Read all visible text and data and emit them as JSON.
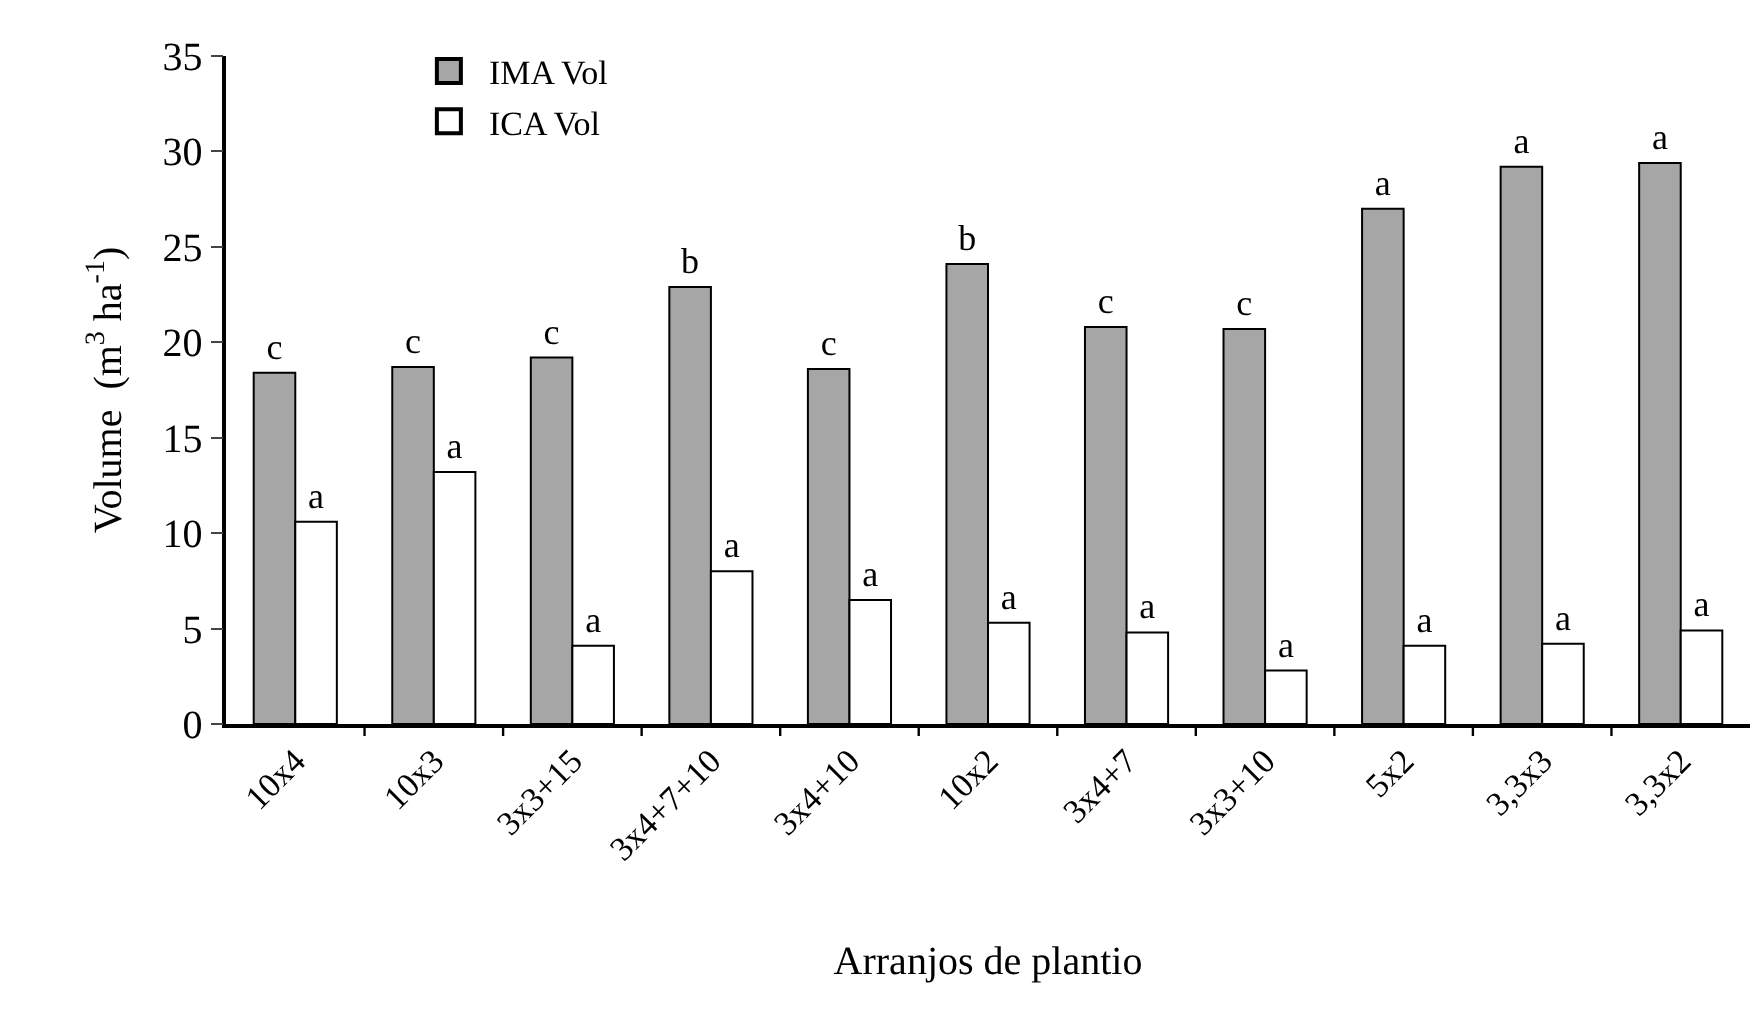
{
  "chart_data": {
    "type": "bar",
    "xlabel": "Arranjos de plantio",
    "ylabel": "Volume  (m$^{3}$ ha$^{-1}$)",
    "categories": [
      "10x4",
      "10x3",
      "3x3+15",
      "3x4+7+10",
      "3x4+10",
      "10x2",
      "3x4+7",
      "3x3+10",
      "5x2",
      "3,3x3",
      "3,3x2"
    ],
    "series": [
      {
        "name": "IMA Vol",
        "color": "#a6a6a6",
        "values": [
          18.4,
          18.7,
          19.2,
          22.9,
          18.6,
          24.1,
          20.8,
          20.7,
          27.0,
          29.2,
          29.4
        ],
        "value_labels": [
          "c",
          "c",
          "c",
          "b",
          "c",
          "b",
          "c",
          "c",
          "a",
          "a",
          "a"
        ]
      },
      {
        "name": "ICA Vol",
        "color": "#ffffff",
        "values": [
          10.6,
          13.2,
          4.1,
          8.0,
          6.5,
          5.3,
          4.8,
          2.8,
          4.1,
          4.2,
          4.9
        ],
        "value_labels": [
          "a",
          "a",
          "a",
          "a",
          "a",
          "a",
          "a",
          "a",
          "a",
          "a",
          "a"
        ]
      }
    ],
    "ylim": [
      0,
      35
    ],
    "yticks": [
      0,
      5,
      10,
      15,
      20,
      25,
      30,
      35
    ],
    "grid": false,
    "legend": "top left"
  }
}
